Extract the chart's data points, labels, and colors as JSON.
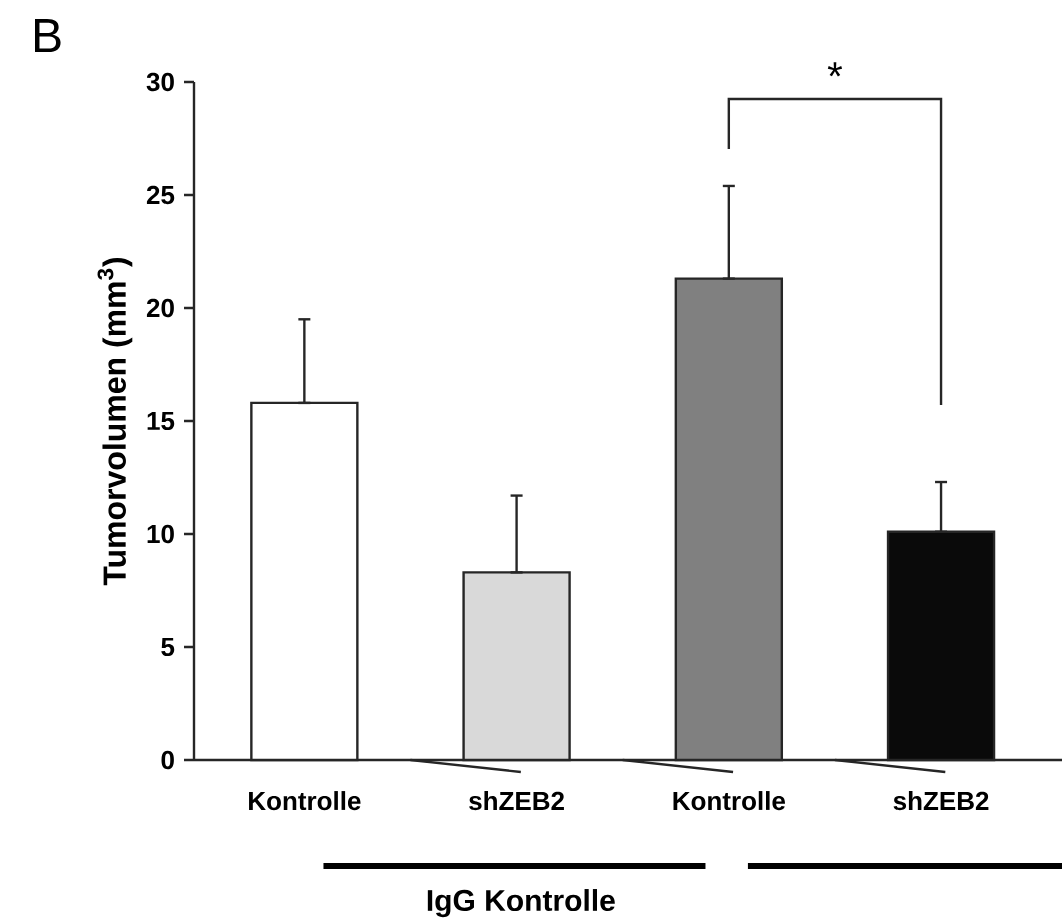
{
  "chart_data": {
    "type": "bar",
    "ylabel": "Tumorvolumen (mm$^{3}$)",
    "categories": [
      "Kontrolle",
      "shZEB2",
      "Kontrolle",
      "shZEB2"
    ],
    "values": [
      15.8,
      8.3,
      21.3,
      10.1
    ],
    "colors": [
      "#ffffff",
      "#d9d9d9",
      "#808080",
      "#0a0a0a"
    ],
    "errors": [
      [
        15.8,
        19.5
      ],
      [
        8.3,
        11.7
      ],
      [
        21.3,
        25.4
      ],
      [
        10.1,
        12.3
      ]
    ],
    "ylim": [
      0,
      30
    ],
    "yticks": [
      0,
      5,
      10,
      15,
      20,
      25,
      30
    ],
    "grid": false,
    "annotations": [
      "B",
      "*",
      "IgG Kontrolle"
    ]
  }
}
